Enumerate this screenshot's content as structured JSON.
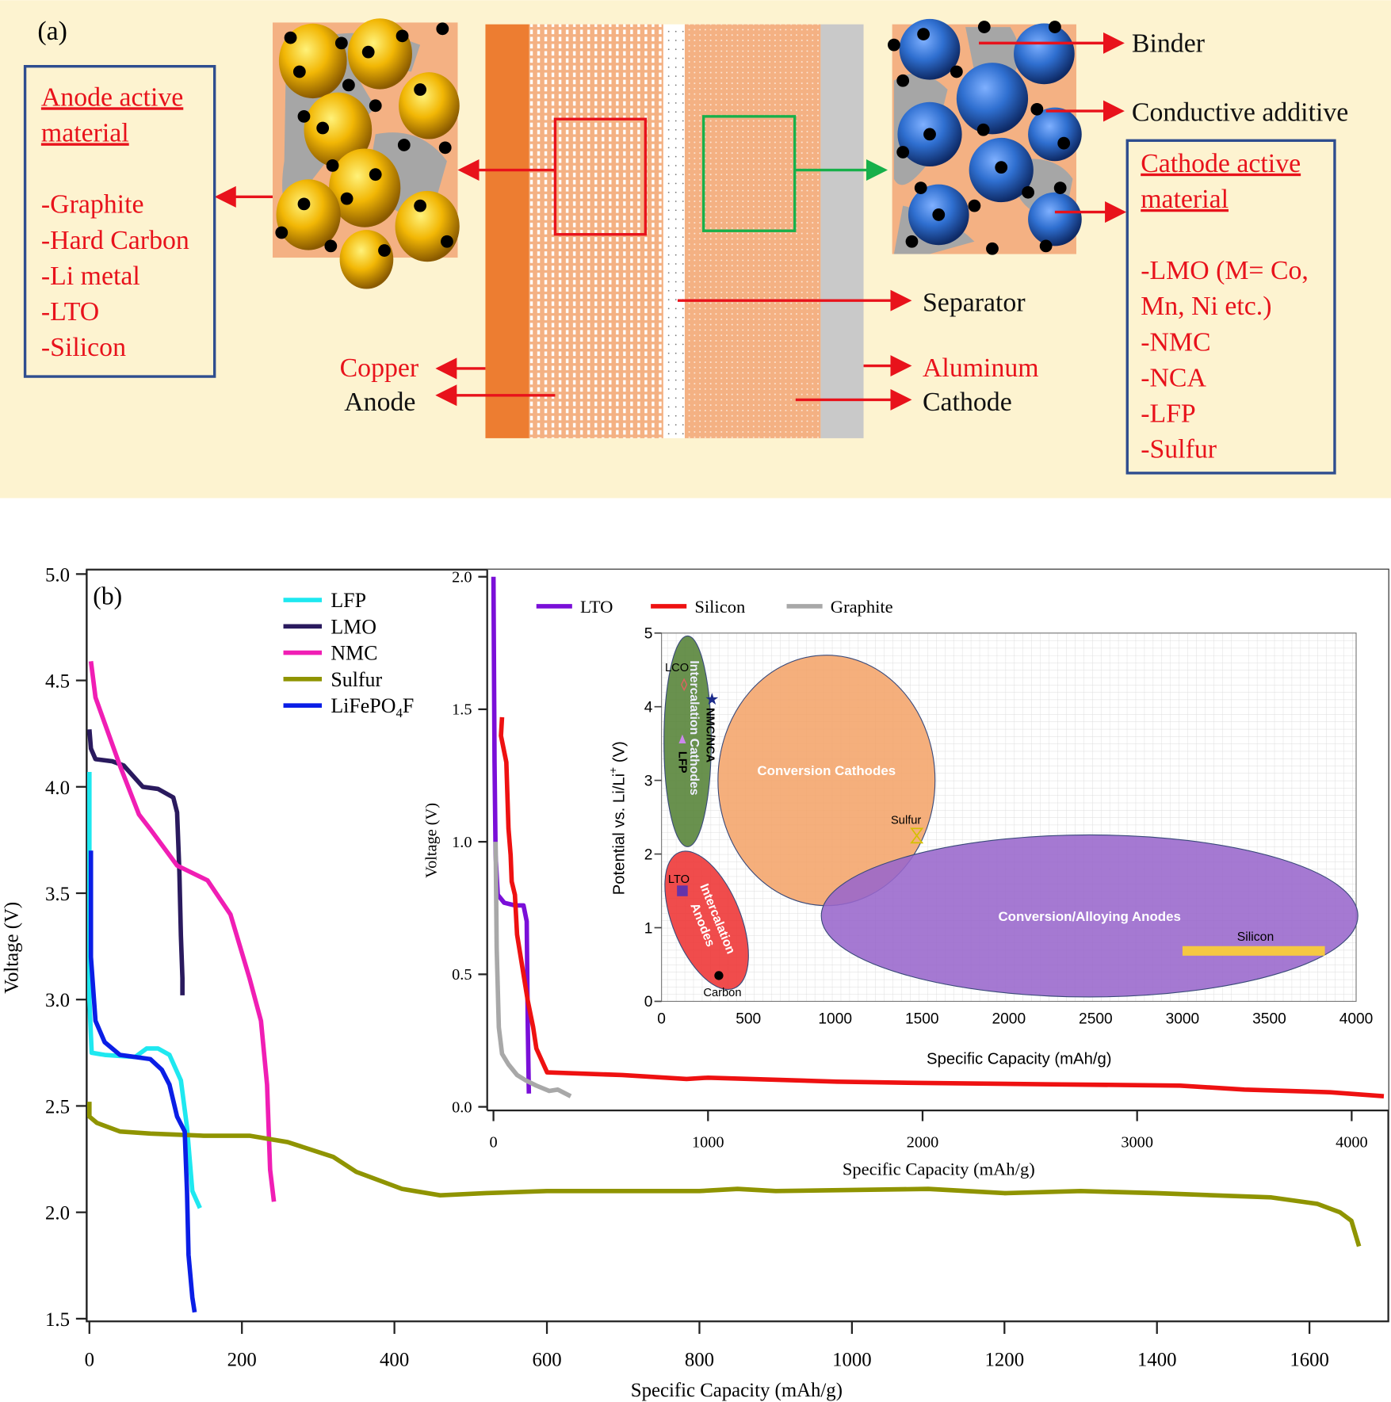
{
  "panel_a": {
    "label": "(a)",
    "anode_box": {
      "title_line1": "Anode active",
      "title_line2": "material",
      "items": [
        "-Graphite",
        "-Hard Carbon",
        "-Li metal",
        "-LTO",
        "-Silicon"
      ]
    },
    "cathode_box": {
      "title_line1": "Cathode active",
      "title_line2": "material",
      "items": [
        "-LMO (M= Co,",
        "Mn, Ni etc.)",
        "-NMC",
        "-NCA",
        "-LFP",
        "-Sulfur"
      ]
    },
    "labels": {
      "binder": "Binder",
      "conductive_additive": "Conductive additive",
      "separator": "Separator",
      "copper": "Copper",
      "anode": "Anode",
      "aluminum": "Aluminum",
      "cathode": "Cathode"
    },
    "colors": {
      "background": "#fdf3d0",
      "copper": "#ed7d31",
      "electrode": "#f4b183",
      "aluminum": "#c9c9c9",
      "anode_particle": "#f2b705",
      "cathode_particle": "#2f6fd0",
      "binder": "#a6a6a6",
      "red_text": "#e8121b",
      "box_border": "#2e4d8f"
    }
  },
  "chart_data": [
    {
      "type": "line",
      "panel_label": "(b)",
      "xlabel": "Specific Capacity (mAh/g)",
      "ylabel": "Voltage (V)",
      "xlim": [
        0,
        1700
      ],
      "ylim": [
        1.5,
        5.0
      ],
      "xticks": [
        "0",
        "200",
        "400",
        "600",
        "800",
        "1000",
        "1200",
        "1400",
        "1600"
      ],
      "yticks": [
        "1.5",
        "2.0",
        "2.5",
        "3.0",
        "3.5",
        "4.0",
        "4.5",
        "5.0"
      ],
      "grid": false,
      "legend_placement": "top-left",
      "series": [
        {
          "name": "LFP",
          "color": "#1ee8f0",
          "points": [
            [
              0,
              4.07
            ],
            [
              0,
              3.0
            ],
            [
              3,
              2.75
            ],
            [
              20,
              2.74
            ],
            [
              60,
              2.73
            ],
            [
              75,
              2.77
            ],
            [
              90,
              2.77
            ],
            [
              105,
              2.74
            ],
            [
              120,
              2.62
            ],
            [
              128,
              2.4
            ],
            [
              135,
              2.1
            ],
            [
              145,
              2.02
            ]
          ]
        },
        {
          "name": "LMO",
          "color": "#2a1a5e",
          "points": [
            [
              0,
              4.27
            ],
            [
              2,
              4.18
            ],
            [
              8,
              4.13
            ],
            [
              30,
              4.12
            ],
            [
              45,
              4.1
            ],
            [
              55,
              4.06
            ],
            [
              70,
              4.0
            ],
            [
              90,
              3.99
            ],
            [
              110,
              3.95
            ],
            [
              115,
              3.88
            ],
            [
              118,
              3.6
            ],
            [
              120,
              3.3
            ],
            [
              122,
              3.1
            ],
            [
              122,
              3.02
            ]
          ]
        },
        {
          "name": "NMC",
          "color": "#f01eb4",
          "points": [
            [
              2,
              4.59
            ],
            [
              8,
              4.42
            ],
            [
              25,
              4.25
            ],
            [
              40,
              4.1
            ],
            [
              65,
              3.87
            ],
            [
              80,
              3.8
            ],
            [
              115,
              3.63
            ],
            [
              155,
              3.56
            ],
            [
              185,
              3.4
            ],
            [
              210,
              3.1
            ],
            [
              225,
              2.9
            ],
            [
              233,
              2.6
            ],
            [
              237,
              2.2
            ],
            [
              242,
              2.05
            ]
          ]
        },
        {
          "name": "Sulfur",
          "color": "#8f9400",
          "points": [
            [
              0,
              2.52
            ],
            [
              0,
              2.45
            ],
            [
              10,
              2.42
            ],
            [
              40,
              2.38
            ],
            [
              80,
              2.37
            ],
            [
              150,
              2.36
            ],
            [
              210,
              2.36
            ],
            [
              260,
              2.33
            ],
            [
              320,
              2.26
            ],
            [
              350,
              2.19
            ],
            [
              410,
              2.11
            ],
            [
              460,
              2.08
            ],
            [
              520,
              2.09
            ],
            [
              600,
              2.1
            ],
            [
              800,
              2.1
            ],
            [
              850,
              2.11
            ],
            [
              900,
              2.1
            ],
            [
              1100,
              2.11
            ],
            [
              1200,
              2.09
            ],
            [
              1300,
              2.1
            ],
            [
              1400,
              2.09
            ],
            [
              1550,
              2.07
            ],
            [
              1610,
              2.04
            ],
            [
              1640,
              2.0
            ],
            [
              1655,
              1.96
            ],
            [
              1665,
              1.84
            ]
          ]
        },
        {
          "name": "LiFePO4F",
          "color": "#0a1ee6",
          "points": [
            [
              2,
              3.7
            ],
            [
              2,
              3.2
            ],
            [
              8,
              2.9
            ],
            [
              20,
              2.8
            ],
            [
              40,
              2.74
            ],
            [
              60,
              2.73
            ],
            [
              80,
              2.72
            ],
            [
              95,
              2.67
            ],
            [
              105,
              2.6
            ],
            [
              115,
              2.45
            ],
            [
              125,
              2.38
            ],
            [
              128,
              2.1
            ],
            [
              130,
              1.8
            ],
            [
              135,
              1.6
            ],
            [
              138,
              1.53
            ]
          ]
        }
      ]
    },
    {
      "type": "line",
      "xlabel": "Specific Capacity (mAh/g)",
      "ylabel": "Voltage (V)",
      "xlim": [
        0,
        4150
      ],
      "ylim": [
        0,
        2.0
      ],
      "xticks": [
        "0",
        "1000",
        "2000",
        "3000",
        "4000"
      ],
      "yticks": [
        "0.0",
        "0.5",
        "1.0",
        "1.5",
        "2.0"
      ],
      "legend_placement": "top",
      "series": [
        {
          "name": "LTO",
          "color": "#7a0fd8",
          "points": [
            [
              0,
              2.0
            ],
            [
              5,
              1.3
            ],
            [
              10,
              0.95
            ],
            [
              20,
              0.8
            ],
            [
              50,
              0.77
            ],
            [
              100,
              0.76
            ],
            [
              140,
              0.76
            ],
            [
              155,
              0.7
            ],
            [
              160,
              0.3
            ],
            [
              165,
              0.05
            ]
          ]
        },
        {
          "name": "Silicon",
          "color": "#ee1111",
          "points": [
            [
              40,
              1.47
            ],
            [
              35,
              1.4
            ],
            [
              60,
              1.3
            ],
            [
              70,
              1.05
            ],
            [
              80,
              0.95
            ],
            [
              85,
              0.85
            ],
            [
              100,
              0.8
            ],
            [
              110,
              0.65
            ],
            [
              130,
              0.55
            ],
            [
              160,
              0.4
            ],
            [
              185,
              0.3
            ],
            [
              200,
              0.22
            ],
            [
              250,
              0.13
            ],
            [
              600,
              0.12
            ],
            [
              900,
              0.105
            ],
            [
              1000,
              0.11
            ],
            [
              1600,
              0.095
            ],
            [
              2000,
              0.09
            ],
            [
              2600,
              0.085
            ],
            [
              3200,
              0.08
            ],
            [
              3500,
              0.065
            ],
            [
              3900,
              0.055
            ],
            [
              4150,
              0.04
            ]
          ]
        },
        {
          "name": "Graphite",
          "color": "#a8a8a8",
          "points": [
            [
              10,
              1.0
            ],
            [
              15,
              0.6
            ],
            [
              25,
              0.3
            ],
            [
              40,
              0.2
            ],
            [
              70,
              0.16
            ],
            [
              110,
              0.12
            ],
            [
              150,
              0.1
            ],
            [
              200,
              0.08
            ],
            [
              260,
              0.06
            ],
            [
              300,
              0.065
            ],
            [
              360,
              0.04
            ]
          ]
        }
      ]
    },
    {
      "type": "scatter",
      "xlabel": "Specific Capacity (mAh/g)",
      "ylabel": "Potential vs. Li/Li",
      "ylabel_sup": "+",
      "ylabel_unit": " (V)",
      "xlim": [
        0,
        4000
      ],
      "ylim": [
        0,
        5
      ],
      "xticks": [
        "0",
        "500",
        "1000",
        "1500",
        "2000",
        "2500",
        "3000",
        "3500",
        "4000"
      ],
      "yticks": [
        "0",
        "1",
        "2",
        "3",
        "4",
        "5"
      ],
      "grid": true,
      "regions": [
        {
          "name": "Intercalation Cathodes",
          "color": "#548235",
          "cx": 150,
          "cy": 3.53,
          "rx": 136,
          "ry": 1.43
        },
        {
          "name": "Conversion Cathodes",
          "color": "#f4a46a",
          "cx": 950,
          "cy": 3.0,
          "rx": 625,
          "ry": 1.7
        },
        {
          "name": "Conversion/Alloying Anodes",
          "color": "#9966cc",
          "cx": 2465,
          "cy": 1.16,
          "rx": 1545,
          "ry": 1.1
        },
        {
          "name": "Intercalation Anodes",
          "color": "#ee3333",
          "cx": 260,
          "cy": 1.1,
          "rx": 140,
          "ry": 1.0
        }
      ],
      "points": [
        {
          "label": "LCO",
          "x": 130,
          "y": 4.3,
          "marker": "diamond",
          "color": "#e06060"
        },
        {
          "label": "NMC/NCA",
          "x": 290,
          "y": 4.1,
          "marker": "star",
          "color": "#1a2a8a"
        },
        {
          "label": "LFP",
          "x": 120,
          "y": 3.55,
          "marker": "triangle",
          "color": "#cc88ee"
        },
        {
          "label": "Sulfur",
          "x": 1470,
          "y": 2.25,
          "marker": "hourglass",
          "color": "#d4c000"
        },
        {
          "label": "LTO",
          "x": 120,
          "y": 1.5,
          "marker": "square",
          "color": "#6633aa"
        },
        {
          "label": "Carbon",
          "x": 330,
          "y": 0.35,
          "marker": "circle",
          "color": "#000000"
        }
      ],
      "bars": [
        {
          "label": "Silicon",
          "x": [
            3000,
            3820
          ],
          "y": [
            0.62,
            0.75
          ],
          "color": "#f5c842"
        }
      ]
    }
  ]
}
